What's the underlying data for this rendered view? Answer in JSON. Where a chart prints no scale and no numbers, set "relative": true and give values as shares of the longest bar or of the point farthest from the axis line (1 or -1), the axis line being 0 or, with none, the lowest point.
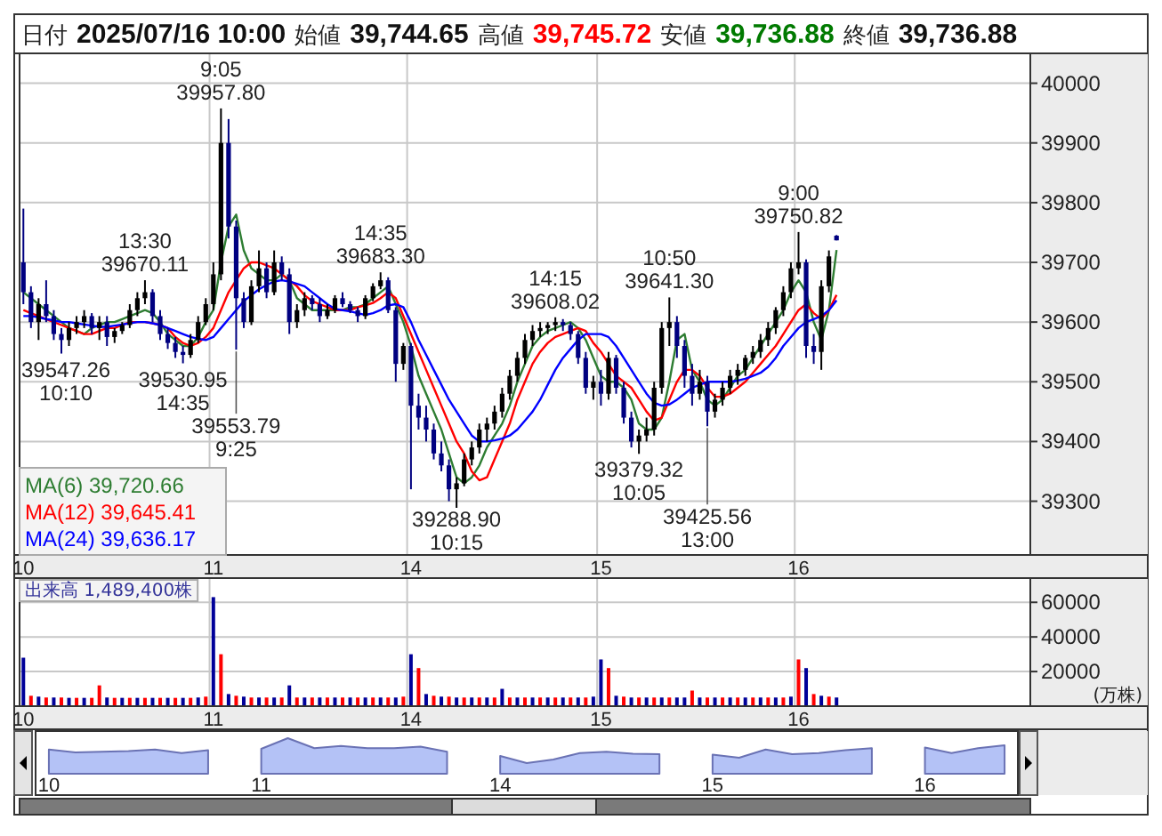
{
  "chart_data": [
    {
      "type": "candlestick",
      "categories": [
        "10",
        null,
        null,
        null,
        null,
        null,
        null,
        null,
        null,
        null,
        null,
        null,
        null,
        null,
        null,
        null,
        null,
        null,
        null,
        null,
        null,
        null,
        null,
        null,
        null,
        "11",
        null,
        null,
        null,
        null,
        null,
        null,
        null,
        null,
        null,
        null,
        null,
        null,
        null,
        null,
        null,
        null,
        null,
        null,
        null,
        null,
        null,
        null,
        null,
        null,
        null,
        "14",
        null,
        null,
        null,
        null,
        null,
        null,
        null,
        null,
        null,
        null,
        null,
        null,
        null,
        null,
        null,
        null,
        null,
        null,
        null,
        null,
        null,
        null,
        null,
        null,
        "15",
        null,
        null,
        null,
        null,
        null,
        null,
        null,
        null,
        null,
        null,
        null,
        null,
        null,
        null,
        null,
        null,
        null,
        null,
        null,
        null,
        null,
        null,
        null,
        null,
        null,
        "16",
        null,
        null,
        null,
        null,
        null,
        null,
        null,
        null,
        null,
        null,
        null,
        null,
        null,
        null,
        null,
        null,
        null,
        null,
        null,
        null,
        null,
        null,
        null,
        null,
        null,
        null,
        null,
        null,
        null,
        null
      ],
      "ohlc": [
        [
          39700,
          39790,
          39630,
          39650
        ],
        [
          39650,
          39660,
          39590,
          39600
        ],
        [
          39600,
          39640,
          39570,
          39630
        ],
        [
          39630,
          39670,
          39600,
          39610
        ],
        [
          39610,
          39620,
          39570,
          39580
        ],
        [
          39580,
          39590,
          39547.26,
          39570
        ],
        [
          39570,
          39600,
          39560,
          39590
        ],
        [
          39590,
          39610,
          39580,
          39600
        ],
        [
          39600,
          39620,
          39590,
          39610
        ],
        [
          39610,
          39615,
          39580,
          39590
        ],
        [
          39590,
          39610,
          39570,
          39600
        ],
        [
          39600,
          39610,
          39560,
          39575
        ],
        [
          39575,
          39590,
          39565,
          39585
        ],
        [
          39585,
          39600,
          39580,
          39595
        ],
        [
          39595,
          39630,
          39590,
          39620
        ],
        [
          39620,
          39650,
          39610,
          39640
        ],
        [
          39640,
          39670.11,
          39630,
          39650
        ],
        [
          39650,
          39655,
          39600,
          39610
        ],
        [
          39610,
          39620,
          39570,
          39580
        ],
        [
          39580,
          39590,
          39555,
          39565
        ],
        [
          39565,
          39575,
          39540,
          39550
        ],
        [
          39550,
          39560,
          39530.95,
          39545
        ],
        [
          39545,
          39580,
          39540,
          39570
        ],
        [
          39570,
          39610,
          39565,
          39600
        ],
        [
          39600,
          39640,
          39595,
          39630
        ],
        [
          39630,
          39700,
          39620,
          39680
        ],
        [
          39680,
          39957.8,
          39670,
          39900
        ],
        [
          39900,
          39940,
          39740,
          39760
        ],
        [
          39760,
          39770,
          39553.79,
          39640
        ],
        [
          39640,
          39650,
          39590,
          39600
        ],
        [
          39600,
          39670,
          39595,
          39660
        ],
        [
          39660,
          39720,
          39650,
          39690
        ],
        [
          39690,
          39700,
          39640,
          39650
        ],
        [
          39650,
          39720,
          39645,
          39700
        ],
        [
          39700,
          39710,
          39670,
          39680
        ],
        [
          39680,
          39690,
          39580,
          39600
        ],
        [
          39600,
          39630,
          39590,
          39620
        ],
        [
          39620,
          39650,
          39610,
          39640
        ],
        [
          39640,
          39645,
          39620,
          39630
        ],
        [
          39630,
          39640,
          39600,
          39610
        ],
        [
          39610,
          39630,
          39605,
          39620
        ],
        [
          39620,
          39645,
          39615,
          39640
        ],
        [
          39640,
          39650,
          39625,
          39630
        ],
        [
          39630,
          39635,
          39615,
          39620
        ],
        [
          39620,
          39625,
          39600,
          39610
        ],
        [
          39610,
          39645,
          39605,
          39640
        ],
        [
          39640,
          39665,
          39635,
          39660
        ],
        [
          39660,
          39683.3,
          39655,
          39670
        ],
        [
          39670,
          39675,
          39615,
          39620
        ],
        [
          39620,
          39625,
          39500,
          39530
        ],
        [
          39530,
          39565,
          39520,
          39560
        ],
        [
          39560,
          39565,
          39320,
          39460
        ],
        [
          39460,
          39480,
          39420,
          39440
        ],
        [
          39440,
          39460,
          39400,
          39420
        ],
        [
          39420,
          39430,
          39370,
          39380
        ],
        [
          39380,
          39400,
          39350,
          39360
        ],
        [
          39360,
          39370,
          39300,
          39320
        ],
        [
          39320,
          39340,
          39288.9,
          39330
        ],
        [
          39330,
          39380,
          39325,
          39370
        ],
        [
          39370,
          39400,
          39360,
          39390
        ],
        [
          39390,
          39430,
          39380,
          39420
        ],
        [
          39420,
          39440,
          39400,
          39430
        ],
        [
          39430,
          39460,
          39420,
          39450
        ],
        [
          39450,
          39490,
          39440,
          39480
        ],
        [
          39480,
          39520,
          39470,
          39510
        ],
        [
          39510,
          39550,
          39500,
          39540
        ],
        [
          39540,
          39580,
          39530,
          39570
        ],
        [
          39570,
          39595,
          39560,
          39585
        ],
        [
          39585,
          39600,
          39575,
          39590
        ],
        [
          39590,
          39600,
          39580,
          39595
        ],
        [
          39595,
          39608.02,
          39585,
          39600
        ],
        [
          39600,
          39605,
          39585,
          39595
        ],
        [
          39595,
          39600,
          39570,
          39580
        ],
        [
          39580,
          39585,
          39530,
          39540
        ],
        [
          39540,
          39550,
          39480,
          39490
        ],
        [
          39490,
          39510,
          39470,
          39500
        ],
        [
          39500,
          39520,
          39460,
          39480
        ],
        [
          39480,
          39550,
          39470,
          39540
        ],
        [
          39540,
          39545,
          39480,
          39490
        ],
        [
          39490,
          39500,
          39430,
          39440
        ],
        [
          39440,
          39450,
          39390,
          39400
        ],
        [
          39400,
          39420,
          39379.32,
          39410
        ],
        [
          39410,
          39440,
          39400,
          39420
        ],
        [
          39420,
          39500,
          39410,
          39490
        ],
        [
          39490,
          39600,
          39480,
          39590
        ],
        [
          39590,
          39641.3,
          39560,
          39600
        ],
        [
          39600,
          39610,
          39540,
          39560
        ],
        [
          39560,
          39570,
          39490,
          39510
        ],
        [
          39510,
          39530,
          39460,
          39480
        ],
        [
          39480,
          39520,
          39470,
          39500
        ],
        [
          39500,
          39510,
          39425.56,
          39450
        ],
        [
          39450,
          39480,
          39440,
          39470
        ],
        [
          39470,
          39500,
          39460,
          39490
        ],
        [
          39490,
          39520,
          39480,
          39510
        ],
        [
          39510,
          39530,
          39495,
          39520
        ],
        [
          39520,
          39545,
          39510,
          39540
        ],
        [
          39540,
          39560,
          39530,
          39550
        ],
        [
          39550,
          39580,
          39540,
          39570
        ],
        [
          39570,
          39600,
          39560,
          39590
        ],
        [
          39590,
          39625,
          39580,
          39620
        ],
        [
          39620,
          39660,
          39610,
          39650
        ],
        [
          39650,
          39700,
          39640,
          39690
        ],
        [
          39690,
          39750.82,
          39680,
          39700
        ],
        [
          39700,
          39705,
          39540,
          39560
        ],
        [
          39560,
          39580,
          39530,
          39550
        ],
        [
          39550,
          39670,
          39520,
          39660
        ],
        [
          39660,
          39720,
          39650,
          39710
        ],
        [
          39744.65,
          39745.72,
          39736.88,
          39736.88
        ],
        null,
        null,
        null,
        null,
        null,
        null,
        null,
        null,
        null,
        null,
        null,
        null,
        null,
        null,
        null,
        null,
        null,
        null,
        null,
        null,
        null,
        null,
        null,
        null,
        null
      ],
      "series": [
        {
          "type": "line",
          "name": "MA(6) 39,720.66",
          "color": "#2e7d32",
          "values": [
            39650,
            39640,
            39630,
            39620,
            39610,
            39600,
            39590,
            39585,
            39580,
            39590,
            39595,
            39600,
            39600,
            39605,
            39610,
            39615,
            39620,
            39615,
            39600,
            39580,
            39570,
            39560,
            39560,
            39575,
            39600,
            39620,
            39700,
            39760,
            39780,
            39720,
            39690,
            39680,
            39670,
            39670,
            39680,
            39670,
            39640,
            39630,
            39620,
            39620,
            39620,
            39620,
            39620,
            39625,
            39625,
            39630,
            39640,
            39650,
            39660,
            39630,
            39600,
            39560,
            39510,
            39480,
            39450,
            39420,
            39380,
            39340,
            39330,
            39340,
            39360,
            39390,
            39410,
            39430,
            39460,
            39500,
            39530,
            39560,
            39575,
            39585,
            39590,
            39595,
            39600,
            39590,
            39570,
            39540,
            39510,
            39500,
            39500,
            39490,
            39470,
            39430,
            39420,
            39420,
            39440,
            39500,
            39570,
            39580,
            39520,
            39500,
            39470,
            39460,
            39470,
            39490,
            39510,
            39520,
            39540,
            39560,
            39580,
            39600,
            39620,
            39650,
            39670,
            39650,
            39600,
            39570,
            39620,
            39720.66,
            null,
            null,
            null,
            null,
            null,
            null,
            null,
            null,
            null,
            null,
            null,
            null,
            null,
            null,
            null,
            null,
            null,
            null,
            null,
            null,
            null,
            null,
            null,
            null,
            null
          ]
        },
        {
          "type": "line",
          "name": "MA(12) 39,645.41",
          "color": "#ff0000",
          "values": [
            39620,
            39615,
            39610,
            39605,
            39600,
            39595,
            39590,
            39585,
            39580,
            39580,
            39585,
            39590,
            39590,
            39595,
            39600,
            39600,
            39600,
            39598,
            39595,
            39590,
            39575,
            39565,
            39560,
            39565,
            39575,
            39590,
            39620,
            39650,
            39670,
            39690,
            39700,
            39700,
            39695,
            39690,
            39680,
            39670,
            39660,
            39645,
            39635,
            39630,
            39625,
            39620,
            39620,
            39620,
            39625,
            39628,
            39632,
            39640,
            39650,
            39640,
            39610,
            39580,
            39550,
            39520,
            39490,
            39460,
            39430,
            39400,
            39380,
            39350,
            39335,
            39340,
            39370,
            39400,
            39430,
            39470,
            39500,
            39530,
            39550,
            39565,
            39575,
            39580,
            39585,
            39590,
            39585,
            39565,
            39550,
            39530,
            39510,
            39500,
            39490,
            39470,
            39450,
            39435,
            39440,
            39470,
            39500,
            39520,
            39520,
            39510,
            39490,
            39475,
            39475,
            39480,
            39490,
            39500,
            39515,
            39530,
            39545,
            39560,
            39580,
            39600,
            39620,
            39630,
            39615,
            39605,
            39620,
            39645.41,
            null,
            null,
            null,
            null,
            null,
            null,
            null,
            null,
            null,
            null,
            null,
            null,
            null,
            null,
            null,
            null,
            null,
            null,
            null,
            null,
            null,
            null,
            null,
            null,
            null
          ]
        },
        {
          "type": "line",
          "name": "MA(24) 39,636.17",
          "color": "#0000ff",
          "values": [
            39610,
            39610,
            39608,
            39605,
            39603,
            39600,
            39600,
            39598,
            39596,
            39594,
            39592,
            39592,
            39594,
            39596,
            39598,
            39600,
            39600,
            39598,
            39595,
            39590,
            39585,
            39580,
            39575,
            39572,
            39570,
            39575,
            39590,
            39605,
            39620,
            39635,
            39645,
            39655,
            39662,
            39668,
            39670,
            39668,
            39664,
            39660,
            39650,
            39640,
            39630,
            39622,
            39620,
            39618,
            39615,
            39612,
            39615,
            39620,
            39628,
            39630,
            39625,
            39600,
            39570,
            39545,
            39520,
            39495,
            39470,
            39450,
            39430,
            39410,
            39400,
            39400,
            39402,
            39405,
            39410,
            39420,
            39435,
            39450,
            39470,
            39495,
            39520,
            39540,
            39555,
            39570,
            39580,
            39580,
            39580,
            39575,
            39560,
            39540,
            39520,
            39500,
            39480,
            39465,
            39460,
            39462,
            39470,
            39480,
            39490,
            39495,
            39500,
            39500,
            39500,
            39500,
            39502,
            39505,
            39510,
            39515,
            39525,
            39540,
            39560,
            39575,
            39590,
            39600,
            39605,
            39610,
            39620,
            39636.17,
            null,
            null,
            null,
            null,
            null,
            null,
            null,
            null,
            null,
            null,
            null,
            null,
            null,
            null,
            null,
            null,
            null,
            null,
            null,
            null,
            null,
            null,
            null,
            null,
            null
          ]
        }
      ],
      "ylim": [
        39210,
        40050
      ],
      "yticks": [
        39300,
        39400,
        39500,
        39600,
        39700,
        39800,
        39900,
        40000
      ],
      "grid": true,
      "legend": "bottom left",
      "annotations": [
        "日付",
        "2025/07/16 10:00",
        "始値",
        "39,744.65",
        "高値",
        "39,745.72",
        "安値",
        "39,736.88",
        "終値",
        "39,736.88",
        {
          "text": "9:05",
          "y": 39957.8
        },
        {
          "text": "39957.80",
          "y": 39957.8
        },
        {
          "text": "13:30",
          "y": 39670.11
        },
        {
          "text": "39670.11",
          "y": 39670.11
        },
        {
          "text": "14:35",
          "y": 39683.3
        },
        {
          "text": "39683.30",
          "y": 39683.3
        },
        {
          "text": "14:15",
          "y": 39608.02
        },
        {
          "text": "39608.02",
          "y": 39608.02
        },
        {
          "text": "10:50",
          "y": 39641.3
        },
        {
          "text": "39641.30",
          "y": 39641.3
        },
        {
          "text": "9:00",
          "y": 39750.82
        },
        {
          "text": "39750.82",
          "y": 39750.82
        },
        {
          "text": "39547.26",
          "y": 39547.26
        },
        {
          "text": "10:10",
          "y": 39547.26
        },
        {
          "text": "39530.95",
          "y": 39530.95
        },
        {
          "text": "14:35",
          "y": 39530.95
        },
        {
          "text": "39553.79",
          "y": 39553.79
        },
        {
          "text": "9:25",
          "y": 39553.79
        },
        {
          "text": "39288.90",
          "y": 39288.9
        },
        {
          "text": "10:15",
          "y": 39288.9
        },
        {
          "text": "39379.32",
          "y": 39379.32
        },
        {
          "text": "10:05",
          "y": 39379.32
        },
        {
          "text": "39425.56",
          "y": 39425.56
        },
        {
          "text": "13:00",
          "y": 39425.56
        }
      ]
    },
    {
      "type": "bar",
      "title": "出来高 1,489,400株",
      "ylabel": "(万株)",
      "categories": [
        "10",
        null,
        null,
        null,
        null,
        null,
        null,
        null,
        null,
        null,
        null,
        null,
        null,
        null,
        null,
        null,
        null,
        null,
        null,
        null,
        null,
        null,
        null,
        null,
        null,
        "11",
        null,
        null,
        null,
        null,
        null,
        null,
        null,
        null,
        null,
        null,
        null,
        null,
        null,
        null,
        null,
        null,
        null,
        null,
        null,
        null,
        null,
        null,
        null,
        null,
        null,
        "14",
        null,
        null,
        null,
        null,
        null,
        null,
        null,
        null,
        null,
        null,
        null,
        null,
        null,
        null,
        null,
        null,
        null,
        null,
        null,
        null,
        null,
        null,
        null,
        null,
        "15",
        null,
        null,
        null,
        null,
        null,
        null,
        null,
        null,
        null,
        null,
        null,
        null,
        null,
        null,
        null,
        null,
        null,
        null,
        null,
        null,
        null,
        null,
        null,
        null,
        null,
        "16",
        null,
        null,
        null,
        null,
        null,
        null,
        null,
        null,
        null,
        null,
        null,
        null,
        null,
        null,
        null,
        null,
        null,
        null,
        null,
        null,
        null,
        null,
        null,
        null,
        null,
        null,
        null,
        null,
        null,
        null
      ],
      "values": [
        28000,
        6000,
        5500,
        5000,
        5000,
        5000,
        4800,
        4800,
        4800,
        4800,
        12000,
        5000,
        4800,
        4800,
        4800,
        4800,
        4800,
        4800,
        4800,
        4800,
        4800,
        4800,
        4800,
        5000,
        5500,
        63000,
        30000,
        7000,
        6000,
        5500,
        5000,
        5000,
        5000,
        5000,
        5000,
        12000,
        5000,
        5000,
        5000,
        5000,
        5000,
        5000,
        5000,
        5000,
        5000,
        5000,
        5000,
        5000,
        5000,
        5000,
        5500,
        30000,
        22000,
        7000,
        6000,
        5500,
        5500,
        5000,
        5000,
        5000,
        5000,
        5000,
        5000,
        10000,
        5000,
        5000,
        5000,
        5000,
        5000,
        5000,
        5000,
        5000,
        5000,
        5000,
        5000,
        5500,
        27000,
        22000,
        6000,
        5500,
        5000,
        5000,
        5000,
        5000,
        5000,
        5000,
        5000,
        5000,
        9000,
        5000,
        5000,
        5000,
        5000,
        5000,
        5000,
        5000,
        5000,
        5000,
        5000,
        5000,
        5000,
        5500,
        27000,
        22000,
        7000,
        6000,
        5500,
        5000,
        null,
        null,
        null,
        null,
        null,
        null,
        null,
        null,
        null,
        null,
        null,
        null,
        null,
        null,
        null,
        null,
        null,
        null,
        null,
        null,
        null,
        null,
        null,
        null,
        null
      ],
      "colors": [
        "#000099",
        "#ff0000",
        "#000099",
        "#ff0000",
        "#000099",
        "#ff0000",
        "#000099",
        "#ff0000",
        "#000099",
        "#ff0000",
        "#ff0000",
        "#000099",
        "#ff0000",
        "#000099",
        "#ff0000",
        "#000099",
        "#ff0000",
        "#000099",
        "#ff0000",
        "#000099",
        "#ff0000",
        "#000099",
        "#ff0000",
        "#000099",
        "#ff0000",
        "#000099",
        "#ff0000",
        "#000099",
        "#ff0000",
        "#000099",
        "#ff0000",
        "#000099",
        "#ff0000",
        "#000099",
        "#ff0000",
        "#000099",
        "#ff0000",
        "#000099",
        "#ff0000",
        "#000099",
        "#ff0000",
        "#000099",
        "#ff0000",
        "#000099",
        "#ff0000",
        "#000099",
        "#ff0000",
        "#000099",
        "#ff0000",
        "#000099",
        "#ff0000",
        "#000099",
        "#ff0000",
        "#000099",
        "#ff0000",
        "#000099",
        "#ff0000",
        "#000099",
        "#ff0000",
        "#000099",
        "#ff0000",
        "#000099",
        "#ff0000",
        "#000099",
        "#ff0000",
        "#000099",
        "#ff0000",
        "#000099",
        "#ff0000",
        "#000099",
        "#ff0000",
        "#000099",
        "#ff0000",
        "#000099",
        "#ff0000",
        "#000099",
        "#000099",
        "#ff0000",
        "#000099",
        "#ff0000",
        "#000099",
        "#ff0000",
        "#000099",
        "#ff0000",
        "#000099",
        "#ff0000",
        "#000099",
        "#000099",
        "#ff0000",
        "#000099",
        "#ff0000",
        "#000099",
        "#ff0000",
        "#000099",
        "#ff0000",
        "#000099",
        "#ff0000",
        "#000099",
        "#ff0000",
        "#000099",
        "#ff0000",
        "#000099",
        "#ff0000",
        "#000099",
        "#ff0000",
        "#000099",
        "#ff0000",
        "#000099",
        null,
        null,
        null,
        null,
        null,
        null,
        null,
        null,
        null,
        null,
        null,
        null,
        null,
        null,
        null,
        null,
        null,
        null,
        null,
        null,
        null,
        null,
        null,
        null,
        null
      ],
      "ylim": [
        0,
        74000
      ],
      "yticks": [
        20000,
        40000,
        60000
      ],
      "grid": true
    },
    {
      "type": "area",
      "relative": true,
      "color": "#b4c2f6",
      "categories": [
        "10",
        null,
        null,
        null,
        null,
        null,
        null,
        null,
        "11",
        null,
        null,
        null,
        null,
        null,
        null,
        null,
        null,
        "14",
        null,
        null,
        null,
        null,
        null,
        null,
        null,
        "15",
        null,
        null,
        null,
        null,
        null,
        null,
        null,
        "16",
        null,
        null,
        null
      ],
      "values": [
        0.68,
        0.6,
        0.62,
        0.64,
        0.68,
        0.58,
        0.66,
        null,
        0.7,
        1,
        0.72,
        0.78,
        0.72,
        0.72,
        0.76,
        0.62,
        null,
        0.5,
        0.3,
        0.4,
        0.58,
        0.62,
        0.56,
        0.55,
        null,
        0.54,
        0.45,
        0.68,
        0.55,
        0.58,
        0.66,
        0.72,
        null,
        0.74,
        0.58,
        0.72,
        0.8
      ]
    }
  ]
}
